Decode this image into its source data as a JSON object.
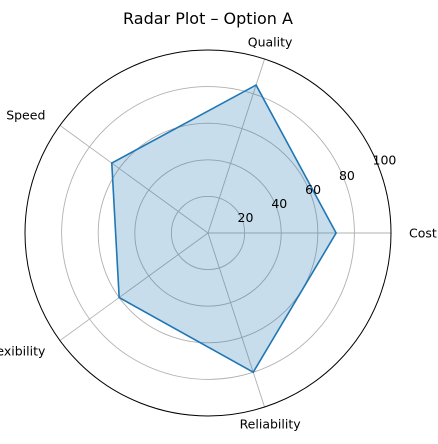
{
  "chart_data": {
    "type": "radar",
    "title": "Radar Plot – Option A",
    "categories": [
      "Cost",
      "Quality",
      "Speed",
      "Flexibility",
      "Reliability"
    ],
    "values": [
      70,
      85,
      65,
      60,
      80
    ],
    "rlim": [
      0,
      100
    ],
    "rticks": [
      20,
      40,
      60,
      80,
      100
    ],
    "rtick_labels": [
      "20",
      "40",
      "60",
      "80",
      "100"
    ],
    "grid": true,
    "colors": {
      "line": "#1f77b4",
      "fill": "#1f77b4",
      "grid": "#b0b0b0",
      "frame": "#000000"
    }
  }
}
